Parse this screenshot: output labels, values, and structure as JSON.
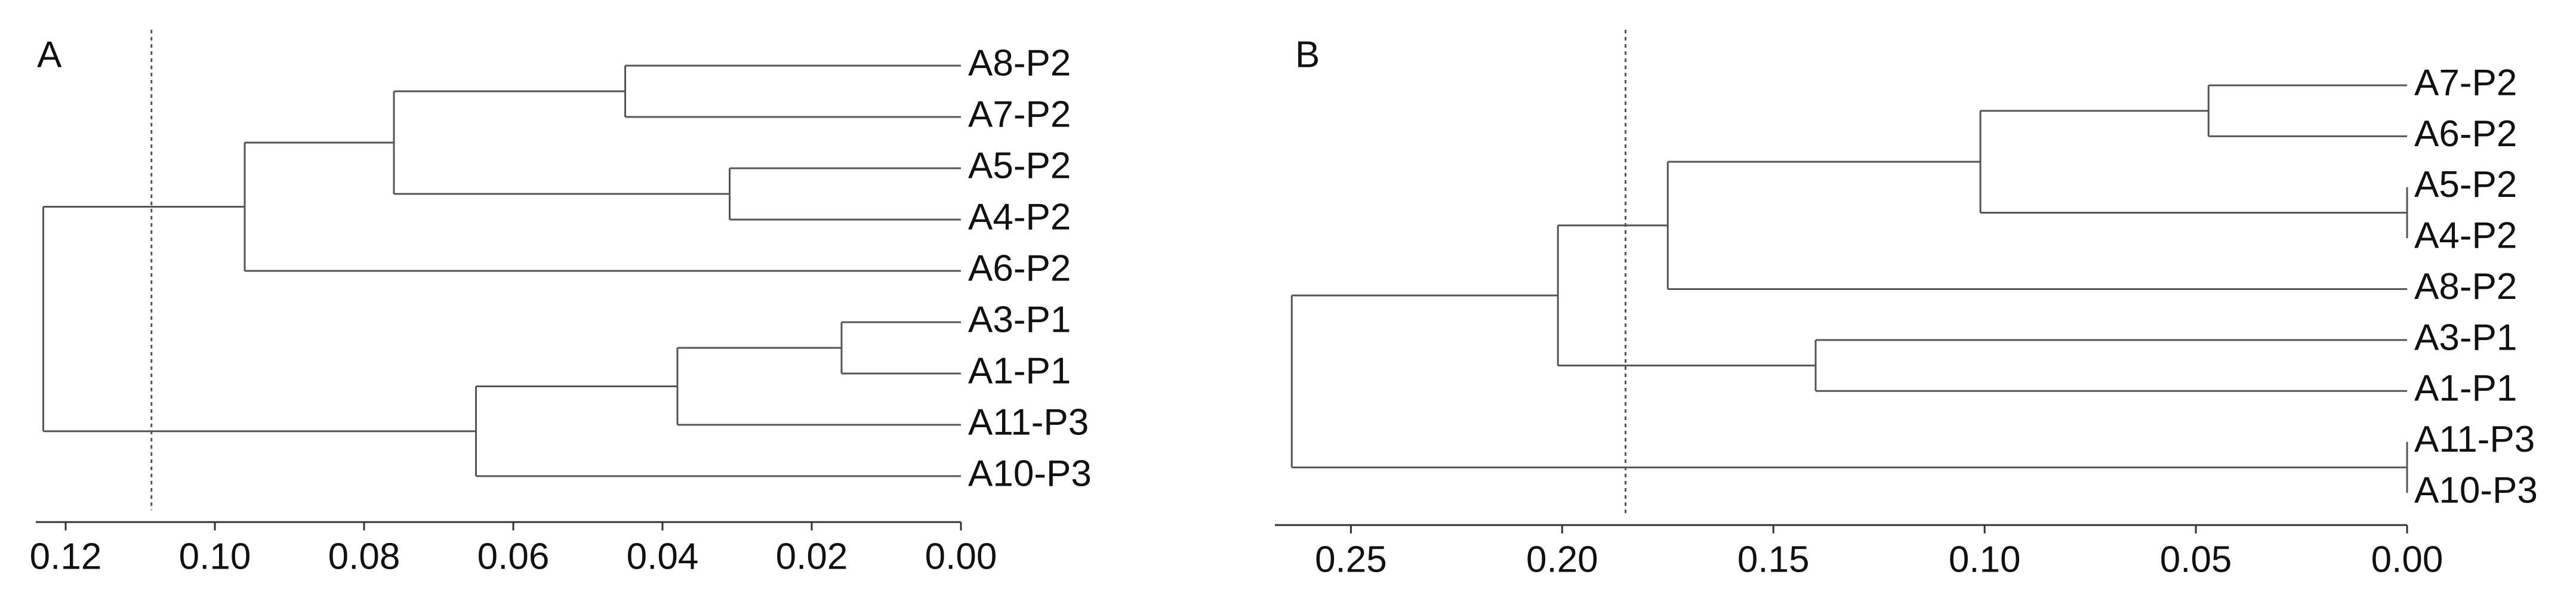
{
  "chart_data": [
    {
      "type": "dendrogram",
      "panel_label": "A",
      "color": "#555555",
      "xlim": [
        0.124,
        0
      ],
      "xticks": [
        {
          "value": 0.12,
          "label": "0.12"
        },
        {
          "value": 0.1,
          "label": "0.10"
        },
        {
          "value": 0.08,
          "label": "0.08"
        },
        {
          "value": 0.06,
          "label": "0.06"
        },
        {
          "value": 0.04,
          "label": "0.04"
        },
        {
          "value": 0.02,
          "label": "0.02"
        },
        {
          "value": 0,
          "label": "0.00"
        }
      ],
      "cut": 0.1085,
      "tree": {
        "height": 0.123,
        "children": [
          {
            "height": 0.096,
            "children": [
              {
                "height": 0.076,
                "children": [
                  {
                    "height": 0.045,
                    "children": [
                      {
                        "label": "A8-P2"
                      },
                      {
                        "label": "A7-P2"
                      }
                    ]
                  },
                  {
                    "height": 0.031,
                    "children": [
                      {
                        "label": "A5-P2"
                      },
                      {
                        "label": "A4-P2"
                      }
                    ]
                  }
                ]
              },
              {
                "label": "A6-P2"
              }
            ]
          },
          {
            "height": 0.065,
            "children": [
              {
                "height": 0.038,
                "children": [
                  {
                    "height": 0.016,
                    "children": [
                      {
                        "label": "A3-P1"
                      },
                      {
                        "label": "A1-P1"
                      }
                    ]
                  },
                  {
                    "label": "A11-P3"
                  }
                ]
              },
              {
                "label": "A10-P3"
              }
            ]
          }
        ]
      }
    },
    {
      "type": "dendrogram",
      "panel_label": "B",
      "color": "#555555",
      "xlim": [
        0.268,
        0
      ],
      "xticks": [
        {
          "value": 0.25,
          "label": "0.25"
        },
        {
          "value": 0.2,
          "label": "0.20"
        },
        {
          "value": 0.15,
          "label": "0.15"
        },
        {
          "value": 0.1,
          "label": "0.10"
        },
        {
          "value": 0.05,
          "label": "0.05"
        },
        {
          "value": 0,
          "label": "0.00"
        }
      ],
      "cut": 0.185,
      "tree": {
        "height": 0.264,
        "children": [
          {
            "height": 0.201,
            "children": [
              {
                "height": 0.175,
                "children": [
                  {
                    "height": 0.101,
                    "children": [
                      {
                        "height": 0.047,
                        "children": [
                          {
                            "label": "A7-P2"
                          },
                          {
                            "label": "A6-P2"
                          }
                        ]
                      },
                      {
                        "height": 0,
                        "children": [
                          {
                            "label": "A5-P2"
                          },
                          {
                            "label": "A4-P2"
                          }
                        ]
                      }
                    ]
                  },
                  {
                    "label": "A8-P2"
                  }
                ]
              },
              {
                "height": 0.14,
                "children": [
                  {
                    "label": "A3-P1"
                  },
                  {
                    "label": "A1-P1"
                  }
                ]
              }
            ]
          },
          {
            "height": 0,
            "children": [
              {
                "label": "A11-P3"
              },
              {
                "label": "A10-P3"
              }
            ]
          }
        ]
      }
    }
  ]
}
